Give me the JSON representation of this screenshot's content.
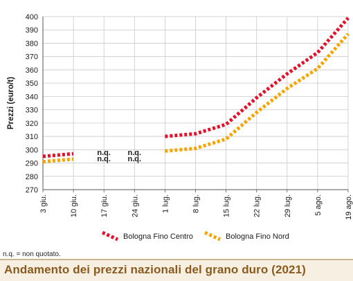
{
  "chart_data": {
    "type": "line",
    "title": "Andamento dei prezzi nazionali del grano duro (2021)",
    "ylabel": "Prezzi (euro/t)",
    "xlabel": "",
    "ylim": [
      270,
      400
    ],
    "yticks": [
      "270",
      "280",
      "290",
      "300",
      "310",
      "320",
      "330",
      "340",
      "350",
      "360",
      "370",
      "380",
      "390",
      "400"
    ],
    "categories": [
      "3 giu.",
      "10 giu.",
      "17 giu.",
      "24 giu.",
      "1 lug.",
      "8 lug.",
      "15 lug.",
      "22 lug.",
      "29 lug.",
      "5 ago.",
      "19 ago."
    ],
    "grid": true,
    "legend_position": "bottom",
    "series": [
      {
        "name": "Bologna Fino Centro",
        "color": "#e3122b",
        "values": [
          295,
          297,
          null,
          null,
          310,
          312,
          319,
          339,
          357,
          373,
          399
        ]
      },
      {
        "name": "Bologna Fino Nord",
        "color": "#f5a500",
        "values": [
          291,
          293,
          null,
          null,
          299,
          301,
          308,
          328,
          346,
          361,
          387
        ]
      }
    ],
    "annotations": [
      {
        "category": "17 giu.",
        "lines": [
          "n.q.",
          "n.q."
        ]
      },
      {
        "category": "24 giu.",
        "lines": [
          "n.q.",
          "n.q."
        ]
      }
    ]
  },
  "footnote": "n.q. = non quotato.",
  "banner_title": "Andamento dei prezzi nazionali del grano duro (2021)"
}
